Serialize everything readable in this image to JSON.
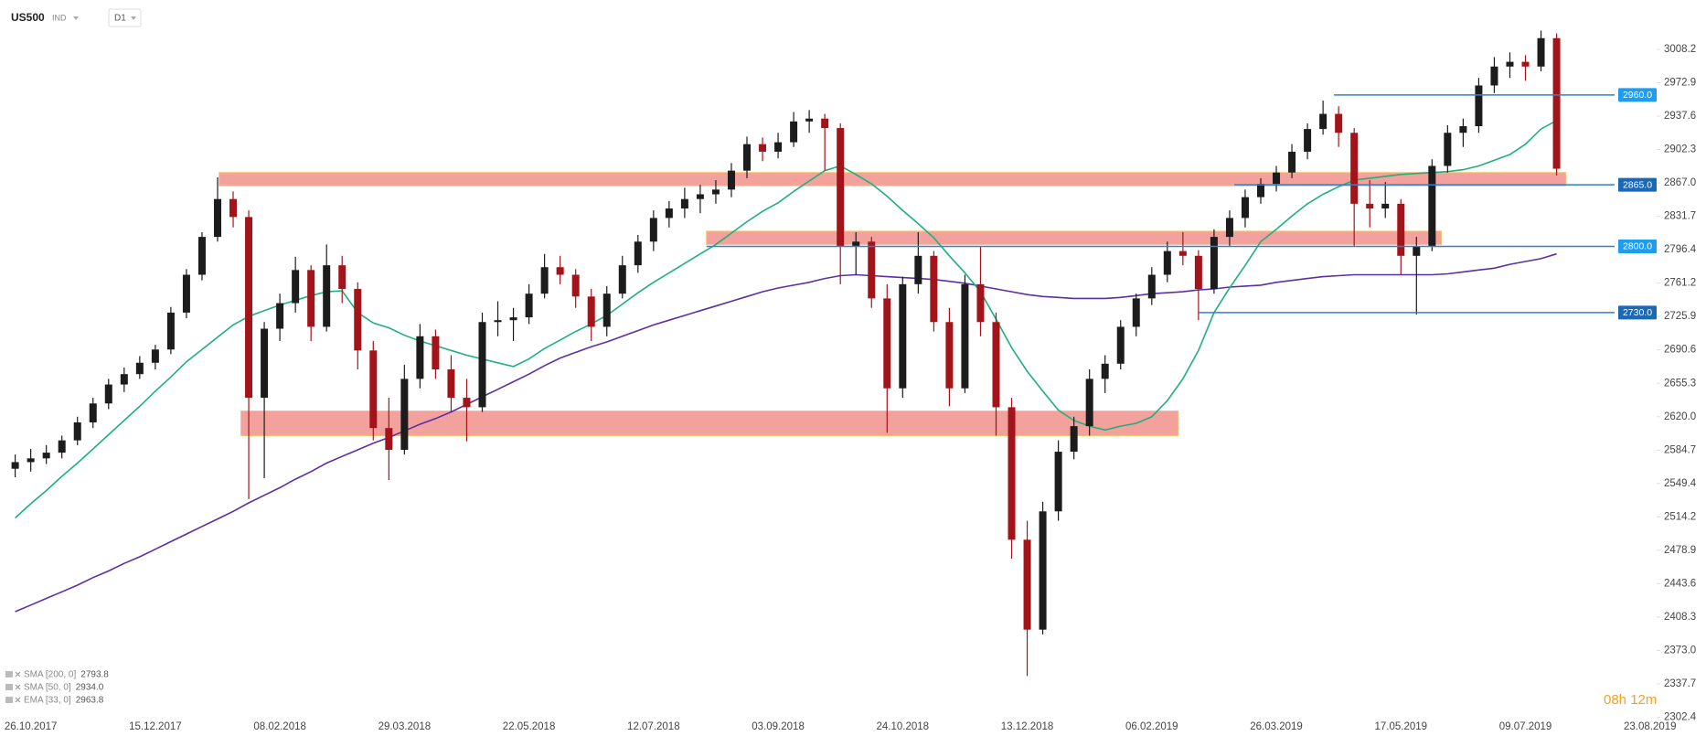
{
  "chart_data": {
    "type": "candlestick",
    "symbol": "US500",
    "instrument_type": "IND",
    "interval": "D1",
    "timer": "08h 12m",
    "up_color": "#1c1c1c",
    "down_color": "#a3141a",
    "categories": [
      null,
      "26.10.2017",
      null,
      null,
      null,
      null,
      null,
      null,
      null,
      "15.12.2017",
      null,
      null,
      null,
      null,
      null,
      null,
      null,
      "08.02.2018",
      null,
      null,
      null,
      null,
      null,
      null,
      null,
      "29.03.2018",
      null,
      null,
      null,
      null,
      null,
      null,
      null,
      "22.05.2018",
      null,
      null,
      null,
      null,
      null,
      null,
      null,
      "12.07.2018",
      null,
      null,
      null,
      null,
      null,
      null,
      null,
      "03.09.2018",
      null,
      null,
      null,
      null,
      null,
      null,
      null,
      "24.10.2018",
      null,
      null,
      null,
      null,
      null,
      null,
      null,
      "13.12.2018",
      null,
      null,
      null,
      null,
      null,
      null,
      null,
      "06.02.2019",
      null,
      null,
      null,
      null,
      null,
      null,
      null,
      "26.03.2019",
      null,
      null,
      null,
      null,
      null,
      null,
      null,
      "17.05.2019",
      null,
      null,
      null,
      null,
      null,
      null,
      null,
      "09.07.2019",
      null,
      null,
      null,
      null,
      null,
      null,
      null,
      "23.08.2019"
    ],
    "open": [
      2565,
      2572,
      2576,
      2582,
      2595,
      2614,
      2634,
      2654,
      2665,
      2677,
      2691,
      2730,
      2770,
      2810,
      2850,
      2831,
      2640,
      2713,
      2740,
      2775,
      2715,
      2780,
      2755,
      2690,
      2608,
      2585,
      2660,
      2705,
      2670,
      2640,
      2630,
      2720,
      2722,
      2725,
      2750,
      2778,
      2770,
      2747,
      2715,
      2750,
      2780,
      2805,
      2830,
      2840,
      2850,
      2855,
      2860,
      2880,
      2908,
      2900,
      2910,
      2932,
      2935,
      2925,
      2800,
      2805,
      2745,
      2650,
      2760,
      2790,
      2720,
      2650,
      2760,
      2720,
      2630,
      2490,
      2395,
      2520,
      2583,
      2610,
      2660,
      2676,
      2715,
      2745,
      2770,
      2795,
      2790,
      2755,
      2810,
      2830,
      2852,
      2866,
      2878,
      2900,
      2924,
      2940,
      2920,
      2845,
      2840,
      2845,
      2790,
      2800,
      2885,
      2920,
      2927,
      2970,
      2990,
      2995,
      2990,
      3020,
      null,
      null,
      null,
      null,
      null,
      null
    ],
    "high": [
      2580,
      2586,
      2590,
      2600,
      2620,
      2640,
      2660,
      2672,
      2684,
      2696,
      2736,
      2776,
      2815,
      2873,
      2858,
      2838,
      2720,
      2750,
      2789,
      2780,
      2802,
      2790,
      2762,
      2700,
      2640,
      2675,
      2718,
      2712,
      2685,
      2660,
      2730,
      2742,
      2735,
      2760,
      2792,
      2790,
      2776,
      2755,
      2758,
      2790,
      2812,
      2838,
      2848,
      2862,
      2865,
      2870,
      2888,
      2916,
      2915,
      2920,
      2942,
      2944,
      2940,
      2930,
      2815,
      2810,
      2760,
      2768,
      2815,
      2795,
      2735,
      2770,
      2800,
      2730,
      2640,
      2510,
      2530,
      2595,
      2620,
      2670,
      2685,
      2722,
      2750,
      2778,
      2805,
      2815,
      2796,
      2818,
      2838,
      2860,
      2872,
      2885,
      2908,
      2930,
      2954,
      2948,
      2925,
      2870,
      2868,
      2850,
      2810,
      2892,
      2928,
      2935,
      2978,
      3000,
      3005,
      3002,
      3028,
      3025,
      null,
      null,
      null,
      null,
      null,
      null
    ],
    "low": [
      2556,
      2562,
      2570,
      2576,
      2590,
      2608,
      2628,
      2646,
      2660,
      2670,
      2686,
      2724,
      2764,
      2805,
      2820,
      2533,
      2555,
      2700,
      2730,
      2700,
      2710,
      2740,
      2670,
      2595,
      2553,
      2580,
      2650,
      2660,
      2625,
      2594,
      2625,
      2705,
      2700,
      2718,
      2745,
      2760,
      2735,
      2700,
      2705,
      2745,
      2772,
      2795,
      2820,
      2830,
      2835,
      2845,
      2852,
      2872,
      2890,
      2893,
      2905,
      2920,
      2880,
      2760,
      2770,
      2735,
      2603,
      2640,
      2750,
      2710,
      2631,
      2645,
      2705,
      2600,
      2470,
      2346,
      2390,
      2510,
      2575,
      2600,
      2645,
      2670,
      2705,
      2738,
      2762,
      2780,
      2722,
      2750,
      2800,
      2820,
      2845,
      2858,
      2872,
      2892,
      2918,
      2905,
      2800,
      2820,
      2830,
      2770,
      2728,
      2795,
      2878,
      2905,
      2920,
      2962,
      2978,
      2975,
      2985,
      2875,
      null,
      null,
      null,
      null,
      null,
      null
    ],
    "close": [
      2572,
      2576,
      2582,
      2595,
      2614,
      2634,
      2654,
      2665,
      2677,
      2691,
      2730,
      2770,
      2810,
      2850,
      2831,
      2640,
      2713,
      2740,
      2775,
      2715,
      2780,
      2755,
      2690,
      2608,
      2585,
      2660,
      2705,
      2670,
      2640,
      2630,
      2720,
      2722,
      2725,
      2750,
      2778,
      2770,
      2747,
      2715,
      2750,
      2780,
      2805,
      2830,
      2840,
      2850,
      2855,
      2860,
      2880,
      2908,
      2900,
      2910,
      2932,
      2935,
      2925,
      2800,
      2805,
      2745,
      2650,
      2760,
      2790,
      2720,
      2650,
      2760,
      2720,
      2630,
      2490,
      2395,
      2520,
      2583,
      2610,
      2660,
      2676,
      2715,
      2745,
      2770,
      2795,
      2790,
      2755,
      2810,
      2830,
      2852,
      2866,
      2878,
      2900,
      2924,
      2940,
      2920,
      2845,
      2840,
      2845,
      2790,
      2800,
      2885,
      2920,
      2927,
      2970,
      2990,
      2995,
      2990,
      3020,
      2882,
      null,
      null,
      null,
      null,
      null,
      null
    ],
    "series": [
      {
        "name": "SMA [200, 0]",
        "last": 2793.8,
        "color": "#5b2fa6",
        "values": [
          2414,
          2421,
          2428,
          2435,
          2442,
          2450,
          2457,
          2465,
          2472,
          2480,
          2488,
          2496,
          2504,
          2512,
          2520,
          2529,
          2537,
          2545,
          2554,
          2562,
          2571,
          2578,
          2585,
          2592,
          2598,
          2605,
          2612,
          2618,
          2625,
          2633,
          2641,
          2649,
          2657,
          2665,
          2674,
          2682,
          2688,
          2694,
          2699,
          2705,
          2711,
          2717,
          2722,
          2727,
          2732,
          2737,
          2742,
          2747,
          2752,
          2756,
          2759,
          2762,
          2766,
          2769,
          2770,
          2769,
          2768,
          2767,
          2766,
          2765,
          2763,
          2761,
          2758,
          2755,
          2752,
          2749,
          2747,
          2746,
          2745,
          2745,
          2745,
          2746,
          2748,
          2750,
          2751,
          2752,
          2754,
          2755,
          2757,
          2758,
          2759,
          2762,
          2764,
          2766,
          2768,
          2769,
          2770,
          2770,
          2770,
          2770,
          2770,
          2770,
          2771,
          2773,
          2775,
          2777,
          2781,
          2784,
          2787,
          2792,
          null,
          null,
          null,
          null,
          null,
          null
        ]
      },
      {
        "name": "SMA [50, 0]",
        "last": {
          "value": 2934,
          "label": "2934.0"
        },
        "color": "#1fb07e",
        "values": [
          2513,
          2528,
          2542,
          2557,
          2571,
          2586,
          2601,
          2616,
          2631,
          2647,
          2662,
          2678,
          2691,
          2704,
          2717,
          2726,
          2732,
          2738,
          2743,
          2748,
          2752,
          2753,
          2730,
          2719,
          2714,
          2706,
          2700,
          2695,
          2690,
          2685,
          2681,
          2677,
          2673,
          2681,
          2692,
          2701,
          2710,
          2718,
          2727,
          2739,
          2751,
          2762,
          2772,
          2782,
          2792,
          2802,
          2814,
          2826,
          2837,
          2846,
          2858,
          2869,
          2880,
          2885,
          2876,
          2866,
          2853,
          2838,
          2824,
          2809,
          2790,
          2772,
          2752,
          2723,
          2693,
          2668,
          2647,
          2627,
          2616,
          2610,
          2606,
          2610,
          2613,
          2620,
          2637,
          2660,
          2690,
          2730,
          2756,
          2780,
          2805,
          2818,
          2832,
          2845,
          2855,
          2863,
          2870,
          2872,
          2874,
          2876,
          2877,
          2878,
          2879,
          2881,
          2885,
          2891,
          2897,
          2908,
          2924,
          2933,
          null,
          null,
          null,
          null,
          null,
          null
        ]
      },
      {
        "name": "EMA [33, 0]",
        "last": 2963.8,
        "color": "#e39a2d"
      }
    ],
    "zones": [
      {
        "low": 2864,
        "high": 2878
      },
      {
        "low": 2802,
        "high": 2816
      },
      {
        "low": 2600,
        "high": 2626
      }
    ],
    "zone_color": "#ef8a84",
    "price_lines": [
      {
        "value": 2960,
        "label": "2960.0",
        "color": "#1e9cf0"
      },
      {
        "value": 2865,
        "label": "2865.0",
        "color": "#1a68b8"
      },
      {
        "value": 2800,
        "label": "2800.0",
        "color": "#1e9cf0"
      },
      {
        "value": 2730,
        "label": "2730.0",
        "color": "#1a68b8"
      }
    ],
    "line_color": "#2f80d0",
    "ylim": [
      2300,
      3055
    ],
    "yticks": [
      3008.2,
      2972.9,
      2937.6,
      2902.3,
      {
        "value": 2867,
        "label": "2867.0"
      },
      2831.7,
      2796.4,
      2761.2,
      2725.9,
      2690.6,
      2655.3,
      {
        "value": 2620,
        "label": "2620.0"
      },
      2584.7,
      2549.4,
      2514.2,
      2478.9,
      2443.6,
      2408.3,
      {
        "value": 2373,
        "label": "2373.0"
      },
      2337.7,
      2302.4
    ],
    "grid": false
  }
}
